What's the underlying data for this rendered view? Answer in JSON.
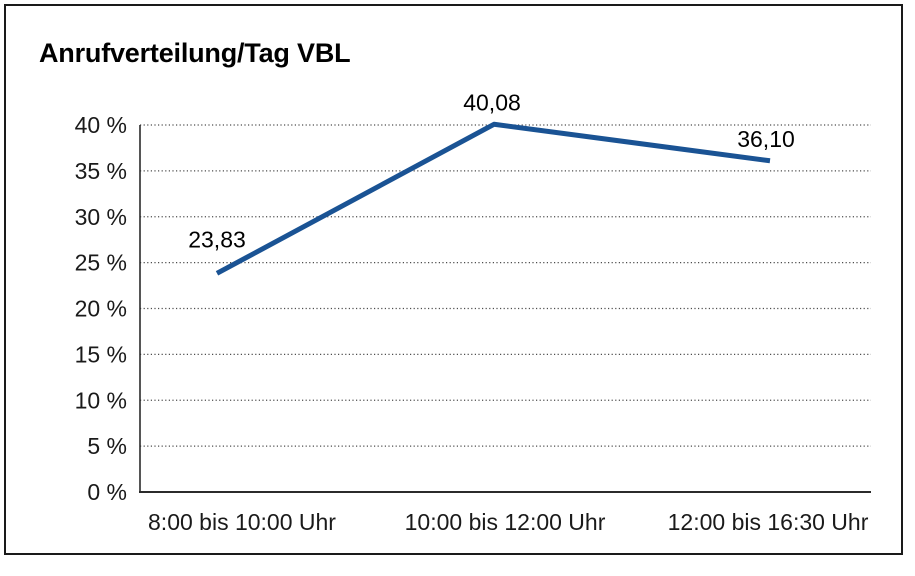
{
  "chart_data": {
    "type": "line",
    "title": "Anrufverteilung/Tag VBL",
    "categories": [
      "8:00 bis 10:00 Uhr",
      "10:00 bis 12:00 Uhr",
      "12:00 bis 16:30 Uhr"
    ],
    "values": [
      23.83,
      40.08,
      36.1
    ],
    "value_labels": [
      "23,83",
      "40,08",
      "36,10"
    ],
    "ylim": [
      0,
      40
    ],
    "ytick_step": 5,
    "ytick_labels": [
      "0 %",
      "5 %",
      "10 %",
      "15 %",
      "20 %",
      "25 %",
      "30 %",
      "35 %",
      "40 %"
    ],
    "xlabel": "",
    "ylabel": "",
    "legend": "none",
    "grid": "horizontal-dotted",
    "colors": {
      "line": "#1a5394",
      "grid": "#4d4d4d",
      "axis": "#2b2b2b",
      "text": "#1a1a1a",
      "border": "#1a1a1a",
      "background": "#ffffff"
    }
  }
}
